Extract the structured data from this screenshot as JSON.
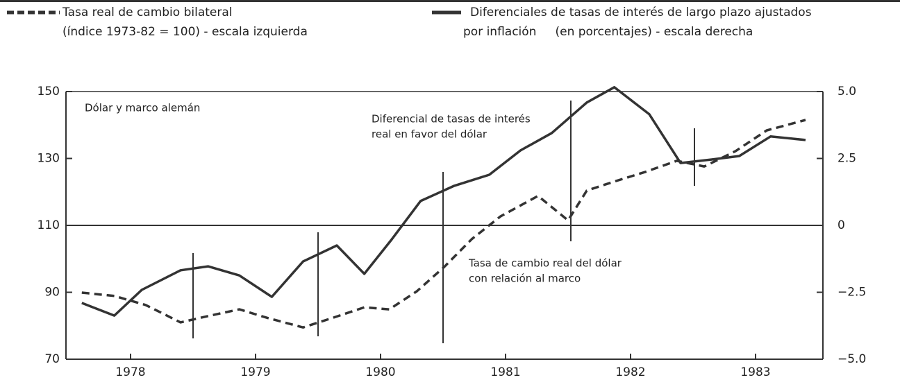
{
  "chart_data": {
    "type": "line",
    "panel_label": "Dólar y marco alemán",
    "annotations": [
      [
        "Diferencial de tasas de interés",
        "real en favor del dólar"
      ],
      [
        "Tasa de cambio real  del dólar",
        "con relación al marco"
      ]
    ],
    "xlim": [
      1978,
      1984
    ],
    "xticks": [
      {
        "value": 1978.5,
        "label": "1978"
      },
      {
        "value": 1979.5,
        "label": "1979"
      },
      {
        "value": 1980.5,
        "label": "1980"
      },
      {
        "value": 1981.5,
        "label": "1981"
      },
      {
        "value": 1982.5,
        "label": "1982"
      },
      {
        "value": 1983.5,
        "label": "1983"
      }
    ],
    "ylim": [
      70,
      150
    ],
    "yticks": [
      70,
      90,
      110,
      130,
      150
    ],
    "y2lim": [
      -5,
      5
    ],
    "y2ticks": [
      {
        "value": 5,
        "label": "5.0"
      },
      {
        "value": 2.5,
        "label": "2.5"
      },
      0,
      {
        "value": -2.5,
        "label": "−2.5"
      },
      {
        "value": -5,
        "label": "−5.0"
      }
    ],
    "reference_line": 110,
    "grid": false,
    "series": [
      {
        "name": "Tasa real de cambio bilateral",
        "legend_note": "(índice 1973-82 = 100) - escala izquierda",
        "color": "#333333",
        "dash": true,
        "axis": "y",
        "x": [
          1978.11,
          1978.37,
          1978.62,
          1978.9,
          1979.12,
          1979.37,
          1979.59,
          1979.88,
          1980.12,
          1980.37,
          1980.57,
          1980.79,
          1981.01,
          1981.23,
          1981.46,
          1981.76,
          1982.0,
          1982.15,
          1982.37,
          1982.62,
          1982.87,
          1983.09,
          1983.34,
          1983.59,
          1983.9
        ],
        "values": [
          89.9,
          88.9,
          86.2,
          81.0,
          82.9,
          84.9,
          82.4,
          79.5,
          82.4,
          85.5,
          84.9,
          90.3,
          97.6,
          105.9,
          112.7,
          118.8,
          111.5,
          120.4,
          123.1,
          126.0,
          129.3,
          127.6,
          132.2,
          138.4,
          141.5
        ]
      },
      {
        "name": "Diferenciales de tasas de interés de largo plazo ajustados",
        "legend_note": "por inflación     (en porcentajes) - escala derecha",
        "color": "#333333",
        "dash": false,
        "axis": "y2",
        "x": [
          1978.11,
          1978.37,
          1978.59,
          1978.9,
          1979.12,
          1979.37,
          1979.63,
          1979.88,
          1980.15,
          1980.37,
          1980.59,
          1980.82,
          1981.09,
          1981.37,
          1981.62,
          1981.87,
          1982.15,
          1982.37,
          1982.65,
          1982.9,
          1983.15,
          1983.37,
          1983.62,
          1983.9
        ],
        "values": [
          -2.9,
          -3.37,
          -2.41,
          -1.68,
          -1.53,
          -1.87,
          -2.67,
          -1.35,
          -0.75,
          -1.81,
          -0.52,
          0.91,
          1.48,
          1.89,
          2.8,
          3.45,
          4.59,
          5.16,
          4.15,
          2.33,
          2.46,
          2.59,
          3.32,
          3.19
        ]
      }
    ]
  }
}
